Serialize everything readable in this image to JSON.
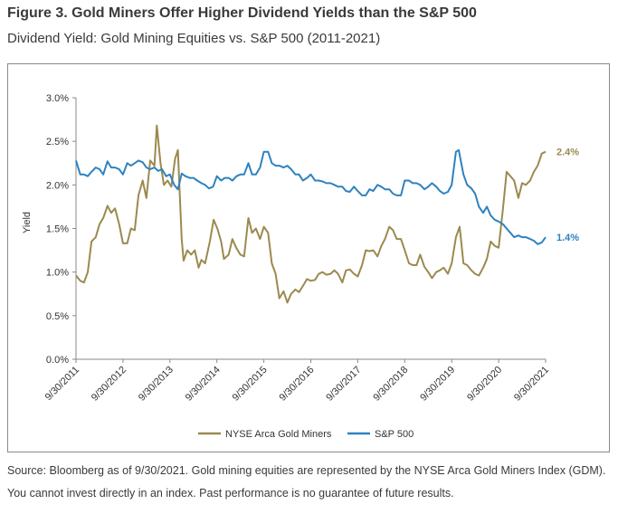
{
  "header": {
    "title": "Figure 3. Gold Miners Offer Higher Dividend Yields than the S&P 500",
    "subtitle": "Dividend Yield: Gold Mining Equities vs. S&P 500 (2011-2021)"
  },
  "footer": {
    "source": "Source: Bloomberg as of 9/30/2021. Gold mining equities are represented by the NYSE Arca Gold Miners Index (GDM). You cannot invest directly in an index. Past performance is no guarantee of future results."
  },
  "chart_data": {
    "type": "line",
    "title": "",
    "xlabel": "",
    "ylabel": "Yield",
    "ylim": [
      0,
      3.0
    ],
    "yticks": [
      0,
      0.5,
      1.0,
      1.5,
      2.0,
      2.5,
      3.0
    ],
    "ytick_labels": [
      "0.0%",
      "0.5%",
      "1.0%",
      "1.5%",
      "2.0%",
      "2.5%",
      "3.0%"
    ],
    "xlim": [
      2011.75,
      2021.75
    ],
    "xtick_labels": [
      "9/30/2011",
      "9/30/2012",
      "9/30/2013",
      "9/30/2014",
      "9/30/2015",
      "9/30/2016",
      "9/30/2017",
      "9/30/2018",
      "9/30/2019",
      "9/30/2020",
      "9/30/2021"
    ],
    "grid": false,
    "legend_position": "bottom",
    "series": [
      {
        "name": "NYSE Arca Gold Miners",
        "color": "#9b8a4f",
        "end_label": "2.4%",
        "points": [
          [
            2011.75,
            0.96
          ],
          [
            2011.84,
            0.9
          ],
          [
            2011.92,
            0.88
          ],
          [
            2012.0,
            1.0
          ],
          [
            2012.08,
            1.35
          ],
          [
            2012.17,
            1.4
          ],
          [
            2012.25,
            1.55
          ],
          [
            2012.33,
            1.62
          ],
          [
            2012.42,
            1.76
          ],
          [
            2012.5,
            1.68
          ],
          [
            2012.58,
            1.73
          ],
          [
            2012.67,
            1.55
          ],
          [
            2012.75,
            1.33
          ],
          [
            2012.84,
            1.33
          ],
          [
            2012.92,
            1.5
          ],
          [
            2013.0,
            1.48
          ],
          [
            2013.08,
            1.88
          ],
          [
            2013.17,
            2.05
          ],
          [
            2013.25,
            1.85
          ],
          [
            2013.33,
            2.28
          ],
          [
            2013.42,
            2.22
          ],
          [
            2013.47,
            2.68
          ],
          [
            2013.55,
            2.25
          ],
          [
            2013.62,
            2.0
          ],
          [
            2013.7,
            2.05
          ],
          [
            2013.78,
            1.98
          ],
          [
            2013.86,
            2.3
          ],
          [
            2013.92,
            2.4
          ],
          [
            2014.0,
            1.38
          ],
          [
            2014.04,
            1.13
          ],
          [
            2014.12,
            1.25
          ],
          [
            2014.2,
            1.2
          ],
          [
            2014.28,
            1.25
          ],
          [
            2014.36,
            1.05
          ],
          [
            2014.42,
            1.14
          ],
          [
            2014.5,
            1.1
          ],
          [
            2014.6,
            1.35
          ],
          [
            2014.68,
            1.6
          ],
          [
            2014.76,
            1.5
          ],
          [
            2014.84,
            1.35
          ],
          [
            2014.9,
            1.15
          ],
          [
            2015.0,
            1.2
          ],
          [
            2015.08,
            1.38
          ],
          [
            2015.16,
            1.28
          ],
          [
            2015.25,
            1.2
          ],
          [
            2015.33,
            1.18
          ],
          [
            2015.42,
            1.62
          ],
          [
            2015.5,
            1.45
          ],
          [
            2015.58,
            1.5
          ],
          [
            2015.67,
            1.38
          ],
          [
            2015.75,
            1.52
          ],
          [
            2015.84,
            1.45
          ],
          [
            2015.92,
            1.1
          ],
          [
            2016.0,
            0.98
          ],
          [
            2016.08,
            0.7
          ],
          [
            2016.17,
            0.78
          ],
          [
            2016.25,
            0.65
          ],
          [
            2016.33,
            0.75
          ],
          [
            2016.42,
            0.8
          ],
          [
            2016.5,
            0.77
          ],
          [
            2016.58,
            0.84
          ],
          [
            2016.67,
            0.92
          ],
          [
            2016.75,
            0.9
          ],
          [
            2016.84,
            0.91
          ],
          [
            2016.92,
            0.98
          ],
          [
            2017.0,
            1.0
          ],
          [
            2017.08,
            0.97
          ],
          [
            2017.17,
            0.98
          ],
          [
            2017.25,
            1.02
          ],
          [
            2017.33,
            0.98
          ],
          [
            2017.42,
            0.88
          ],
          [
            2017.5,
            1.02
          ],
          [
            2017.58,
            1.03
          ],
          [
            2017.67,
            0.98
          ],
          [
            2017.75,
            0.95
          ],
          [
            2017.84,
            1.08
          ],
          [
            2017.92,
            1.25
          ],
          [
            2018.0,
            1.24
          ],
          [
            2018.08,
            1.25
          ],
          [
            2018.17,
            1.18
          ],
          [
            2018.25,
            1.3
          ],
          [
            2018.33,
            1.38
          ],
          [
            2018.42,
            1.52
          ],
          [
            2018.5,
            1.48
          ],
          [
            2018.58,
            1.38
          ],
          [
            2018.67,
            1.38
          ],
          [
            2018.75,
            1.25
          ],
          [
            2018.84,
            1.1
          ],
          [
            2018.92,
            1.08
          ],
          [
            2019.0,
            1.08
          ],
          [
            2019.08,
            1.2
          ],
          [
            2019.17,
            1.06
          ],
          [
            2019.25,
            1.0
          ],
          [
            2019.33,
            0.93
          ],
          [
            2019.42,
            1.0
          ],
          [
            2019.5,
            1.02
          ],
          [
            2019.58,
            1.05
          ],
          [
            2019.67,
            0.98
          ],
          [
            2019.75,
            1.1
          ],
          [
            2019.84,
            1.4
          ],
          [
            2019.92,
            1.52
          ],
          [
            2020.0,
            1.1
          ],
          [
            2020.08,
            1.08
          ],
          [
            2020.17,
            1.02
          ],
          [
            2020.25,
            0.98
          ],
          [
            2020.33,
            0.96
          ],
          [
            2020.42,
            1.05
          ],
          [
            2020.5,
            1.15
          ],
          [
            2020.58,
            1.35
          ],
          [
            2020.67,
            1.3
          ],
          [
            2020.75,
            1.28
          ],
          [
            2020.84,
            1.72
          ],
          [
            2020.92,
            2.15
          ],
          [
            2021.0,
            2.1
          ],
          [
            2021.08,
            2.05
          ],
          [
            2021.17,
            1.85
          ],
          [
            2021.25,
            2.02
          ],
          [
            2021.33,
            2.0
          ],
          [
            2021.42,
            2.05
          ],
          [
            2021.5,
            2.15
          ],
          [
            2021.58,
            2.22
          ],
          [
            2021.67,
            2.36
          ],
          [
            2021.75,
            2.38
          ]
        ]
      },
      {
        "name": "S&P 500",
        "color": "#2e82c0",
        "end_label": "1.4%",
        "points": [
          [
            2011.75,
            2.28
          ],
          [
            2011.84,
            2.12
          ],
          [
            2011.92,
            2.12
          ],
          [
            2012.0,
            2.1
          ],
          [
            2012.08,
            2.15
          ],
          [
            2012.17,
            2.2
          ],
          [
            2012.25,
            2.18
          ],
          [
            2012.33,
            2.12
          ],
          [
            2012.42,
            2.27
          ],
          [
            2012.5,
            2.2
          ],
          [
            2012.58,
            2.2
          ],
          [
            2012.67,
            2.18
          ],
          [
            2012.75,
            2.12
          ],
          [
            2012.84,
            2.25
          ],
          [
            2012.92,
            2.22
          ],
          [
            2013.0,
            2.25
          ],
          [
            2013.08,
            2.28
          ],
          [
            2013.17,
            2.26
          ],
          [
            2013.25,
            2.2
          ],
          [
            2013.33,
            2.18
          ],
          [
            2013.42,
            2.2
          ],
          [
            2013.5,
            2.16
          ],
          [
            2013.58,
            2.18
          ],
          [
            2013.67,
            2.1
          ],
          [
            2013.75,
            2.12
          ],
          [
            2013.84,
            2.0
          ],
          [
            2013.92,
            1.95
          ],
          [
            2014.0,
            2.13
          ],
          [
            2014.08,
            2.1
          ],
          [
            2014.17,
            2.08
          ],
          [
            2014.25,
            2.08
          ],
          [
            2014.33,
            2.05
          ],
          [
            2014.42,
            2.02
          ],
          [
            2014.5,
            2.0
          ],
          [
            2014.58,
            1.96
          ],
          [
            2014.67,
            1.98
          ],
          [
            2014.75,
            2.1
          ],
          [
            2014.84,
            2.05
          ],
          [
            2014.92,
            2.08
          ],
          [
            2015.0,
            2.08
          ],
          [
            2015.08,
            2.05
          ],
          [
            2015.17,
            2.1
          ],
          [
            2015.25,
            2.12
          ],
          [
            2015.33,
            2.12
          ],
          [
            2015.42,
            2.25
          ],
          [
            2015.5,
            2.12
          ],
          [
            2015.58,
            2.12
          ],
          [
            2015.67,
            2.2
          ],
          [
            2015.75,
            2.38
          ],
          [
            2015.84,
            2.38
          ],
          [
            2015.92,
            2.25
          ],
          [
            2016.0,
            2.22
          ],
          [
            2016.08,
            2.22
          ],
          [
            2016.17,
            2.2
          ],
          [
            2016.25,
            2.22
          ],
          [
            2016.33,
            2.18
          ],
          [
            2016.42,
            2.12
          ],
          [
            2016.5,
            2.12
          ],
          [
            2016.58,
            2.05
          ],
          [
            2016.67,
            2.08
          ],
          [
            2016.75,
            2.12
          ],
          [
            2016.84,
            2.05
          ],
          [
            2016.92,
            2.05
          ],
          [
            2017.0,
            2.04
          ],
          [
            2017.08,
            2.02
          ],
          [
            2017.17,
            2.02
          ],
          [
            2017.25,
            2.0
          ],
          [
            2017.33,
            1.98
          ],
          [
            2017.42,
            1.98
          ],
          [
            2017.5,
            1.93
          ],
          [
            2017.58,
            1.92
          ],
          [
            2017.67,
            1.98
          ],
          [
            2017.75,
            1.93
          ],
          [
            2017.84,
            1.88
          ],
          [
            2017.92,
            1.88
          ],
          [
            2018.0,
            1.95
          ],
          [
            2018.08,
            1.93
          ],
          [
            2018.17,
            2.0
          ],
          [
            2018.25,
            1.98
          ],
          [
            2018.33,
            1.95
          ],
          [
            2018.42,
            1.95
          ],
          [
            2018.5,
            1.9
          ],
          [
            2018.58,
            1.88
          ],
          [
            2018.67,
            1.88
          ],
          [
            2018.75,
            2.05
          ],
          [
            2018.84,
            2.05
          ],
          [
            2018.92,
            2.02
          ],
          [
            2019.0,
            2.02
          ],
          [
            2019.08,
            2.0
          ],
          [
            2019.17,
            1.95
          ],
          [
            2019.25,
            1.98
          ],
          [
            2019.33,
            2.02
          ],
          [
            2019.42,
            1.98
          ],
          [
            2019.5,
            1.93
          ],
          [
            2019.58,
            1.9
          ],
          [
            2019.67,
            1.92
          ],
          [
            2019.75,
            2.0
          ],
          [
            2019.84,
            2.38
          ],
          [
            2019.9,
            2.4
          ],
          [
            2020.0,
            2.12
          ],
          [
            2020.08,
            2.0
          ],
          [
            2020.17,
            1.96
          ],
          [
            2020.25,
            1.9
          ],
          [
            2020.33,
            1.75
          ],
          [
            2020.42,
            1.68
          ],
          [
            2020.5,
            1.75
          ],
          [
            2020.58,
            1.65
          ],
          [
            2020.67,
            1.6
          ],
          [
            2020.75,
            1.58
          ],
          [
            2020.84,
            1.55
          ],
          [
            2020.92,
            1.5
          ],
          [
            2021.0,
            1.45
          ],
          [
            2021.08,
            1.4
          ],
          [
            2021.17,
            1.42
          ],
          [
            2021.25,
            1.4
          ],
          [
            2021.33,
            1.4
          ],
          [
            2021.42,
            1.38
          ],
          [
            2021.5,
            1.36
          ],
          [
            2021.58,
            1.32
          ],
          [
            2021.67,
            1.34
          ],
          [
            2021.75,
            1.4
          ]
        ]
      }
    ]
  }
}
